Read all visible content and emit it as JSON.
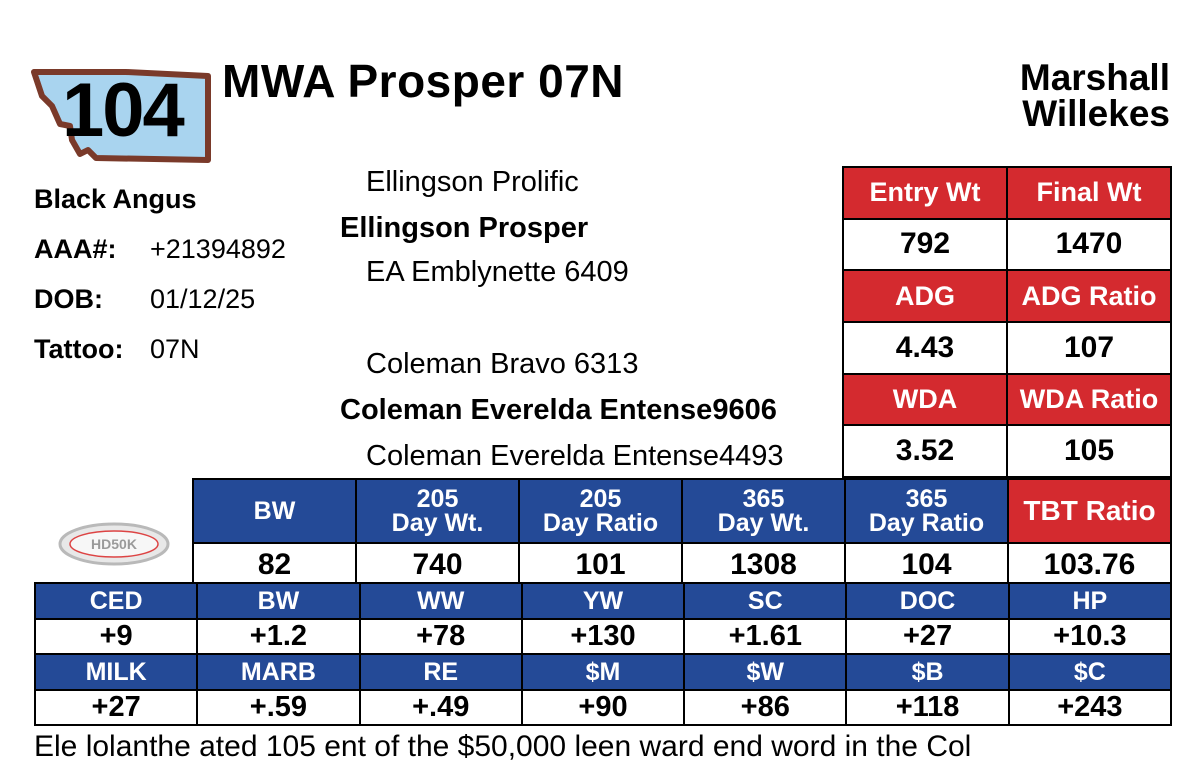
{
  "header": {
    "lot_number": "104",
    "bull_name": "MWA Prosper 07N",
    "consignor_line1": "Marshall",
    "consignor_line2": "Willekes"
  },
  "info": {
    "breed": "Black Angus",
    "aaa_label": "AAA#:",
    "aaa_value": "+21394892",
    "dob_label": "DOB:",
    "dob_value": "01/12/25",
    "tattoo_label": "Tattoo:",
    "tattoo_value": "07N"
  },
  "pedigree": {
    "sire_sire": "Ellingson Prolific",
    "sire": "Ellingson Prosper",
    "sire_dam": "EA Emblynette 6409",
    "dam_sire": "Coleman Bravo 6313",
    "dam": "Coleman Everelda Entense9606",
    "dam_dam": "Coleman Everelda Entense4493"
  },
  "stats": {
    "entry_wt_label": "Entry Wt",
    "final_wt_label": "Final Wt",
    "entry_wt": "792",
    "final_wt": "1470",
    "adg_label": "ADG",
    "adg_ratio_label": "ADG Ratio",
    "adg": "4.43",
    "adg_ratio": "107",
    "wda_label": "WDA",
    "wda_ratio_label": "WDA Ratio",
    "wda": "3.52",
    "wda_ratio": "105"
  },
  "performance": {
    "headers": [
      {
        "line1": "BW",
        "line2": ""
      },
      {
        "line1": "205",
        "line2": "Day Wt."
      },
      {
        "line1": "205",
        "line2": "Day Ratio"
      },
      {
        "line1": "365",
        "line2": "Day Wt."
      },
      {
        "line1": "365",
        "line2": "Day Ratio"
      },
      {
        "line1": "TBT Ratio",
        "line2": ""
      }
    ],
    "values": [
      "82",
      "740",
      "101",
      "1308",
      "104",
      "103.76"
    ]
  },
  "logo": {
    "text": "HD50K"
  },
  "epd": {
    "row1_labels": [
      "CED",
      "BW",
      "WW",
      "YW",
      "SC",
      "DOC",
      "HP"
    ],
    "row1_values": [
      "+9",
      "+1.2",
      "+78",
      "+130",
      "+1.61",
      "+27",
      "+10.3"
    ],
    "row2_labels": [
      "MILK",
      "MARB",
      "RE",
      "$M",
      "$W",
      "$B",
      "$C"
    ],
    "row2_values": [
      "+27",
      "+.59",
      "+.49",
      "+90",
      "+86",
      "+118",
      "+243"
    ]
  },
  "footer": {
    "text": "Ele lolanthe ated 105 ent of the $50,000 leen ward end word in the Col"
  },
  "colors": {
    "red": "#d42a2f",
    "blue": "#244a97",
    "badge_frame": "#7a3a2a",
    "badge_fill": "#a9d4ef"
  }
}
